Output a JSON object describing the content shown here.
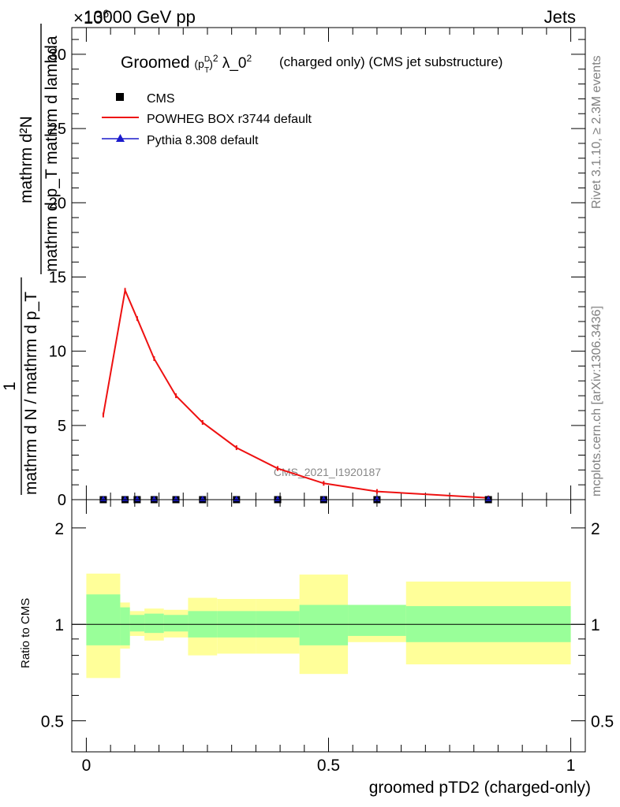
{
  "header": {
    "energy": "13000 GeV pp",
    "process": "Jets",
    "exponent": "×10",
    "exponent_sup": "6"
  },
  "side_text": {
    "rivet": "Rivet 3.1.10, ≥ 2.3M events",
    "mcplots": "mcplots.cern.ch [arXiv:1306.3436]"
  },
  "main_plot": {
    "title_prefix": "Groomed",
    "title_suffix": "(charged only) (CMS jet substructure)",
    "ylabel_top": "mathrm d²N",
    "ylabel_bottom": "mathrm d p_T mathrm d lambda",
    "ylabel_prefactor_num": "1",
    "ylabel_prefactor_den": "mathrm d N / mathrm d p_T",
    "analysis_tag": "CMS_2021_I1920187",
    "legend": [
      {
        "label": "CMS",
        "marker": "square",
        "color": "#000000"
      },
      {
        "label": "POWHEG BOX r3744 default",
        "marker": "line",
        "color": "#ee1111"
      },
      {
        "label": "Pythia 8.308 default",
        "marker": "triangle",
        "color": "#1a1acc"
      }
    ],
    "yticks": [
      "0",
      "5",
      "10",
      "15",
      "20",
      "25",
      "30"
    ]
  },
  "ratio_plot": {
    "ylabel": "Ratio to CMS",
    "yticks": [
      "0.5",
      "1",
      "2"
    ],
    "xlabel": "groomed pTD2 (charged-only)",
    "xticks": [
      "0",
      "0.5",
      "1"
    ]
  },
  "chart_data": [
    {
      "type": "line",
      "xlim": [
        -0.03,
        1.03
      ],
      "ylim": [
        0,
        31.8
      ],
      "y_scale_factor": 1000000,
      "series": [
        {
          "name": "POWHEG BOX r3744 default",
          "color": "#ee1111",
          "x": [
            0.035,
            0.08,
            0.105,
            0.14,
            0.185,
            0.24,
            0.31,
            0.395,
            0.49,
            0.6,
            0.83
          ],
          "y": [
            5.7,
            14.1,
            12.2,
            9.5,
            7.0,
            5.2,
            3.5,
            2.1,
            1.1,
            0.55,
            0.12
          ]
        },
        {
          "name": "CMS",
          "color": "#000000",
          "x": [
            0.035,
            0.08,
            0.105,
            0.14,
            0.185,
            0.24,
            0.31,
            0.395,
            0.49,
            0.6,
            0.83
          ],
          "y": [
            0,
            0,
            0,
            0,
            0,
            0,
            0,
            0,
            0,
            0,
            0
          ]
        },
        {
          "name": "Pythia 8.308 default",
          "color": "#1a1acc",
          "x": [
            0.035,
            0.08,
            0.105,
            0.14,
            0.185,
            0.24,
            0.31,
            0.395,
            0.49,
            0.6,
            0.83
          ],
          "y": [
            0,
            0,
            0,
            0,
            0,
            0,
            0,
            0,
            0,
            0,
            0
          ]
        }
      ]
    },
    {
      "type": "area",
      "xlim": [
        -0.03,
        1.03
      ],
      "ylim": [
        0.4,
        2.45
      ],
      "y_scale": "log",
      "reference_line": 1,
      "bins": [
        {
          "x0": 0.0,
          "x1": 0.07,
          "inner": [
            0.86,
            1.24
          ],
          "outer": [
            0.68,
            1.44
          ]
        },
        {
          "x0": 0.07,
          "x1": 0.09,
          "inner": [
            0.86,
            1.13
          ],
          "outer": [
            0.84,
            1.17
          ]
        },
        {
          "x0": 0.09,
          "x1": 0.12,
          "inner": [
            0.95,
            1.07
          ],
          "outer": [
            0.92,
            1.1
          ]
        },
        {
          "x0": 0.12,
          "x1": 0.16,
          "inner": [
            0.94,
            1.08
          ],
          "outer": [
            0.89,
            1.12
          ]
        },
        {
          "x0": 0.16,
          "x1": 0.21,
          "inner": [
            0.95,
            1.07
          ],
          "outer": [
            0.91,
            1.11
          ]
        },
        {
          "x0": 0.21,
          "x1": 0.27,
          "inner": [
            0.91,
            1.1
          ],
          "outer": [
            0.8,
            1.21
          ]
        },
        {
          "x0": 0.27,
          "x1": 0.35,
          "inner": [
            0.91,
            1.1
          ],
          "outer": [
            0.81,
            1.2
          ]
        },
        {
          "x0": 0.35,
          "x1": 0.44,
          "inner": [
            0.91,
            1.1
          ],
          "outer": [
            0.81,
            1.2
          ]
        },
        {
          "x0": 0.44,
          "x1": 0.54,
          "inner": [
            0.86,
            1.15
          ],
          "outer": [
            0.7,
            1.43
          ]
        },
        {
          "x0": 0.54,
          "x1": 0.66,
          "inner": [
            0.92,
            1.15
          ],
          "outer": [
            0.88,
            1.15
          ]
        },
        {
          "x0": 0.66,
          "x1": 1.0,
          "inner": [
            0.88,
            1.14
          ],
          "outer": [
            0.75,
            1.36
          ]
        }
      ]
    }
  ],
  "colors": {
    "inner_band": "#99ff99",
    "outer_band": "#ffff99",
    "axis": "#000000",
    "side_text": "#808080"
  }
}
